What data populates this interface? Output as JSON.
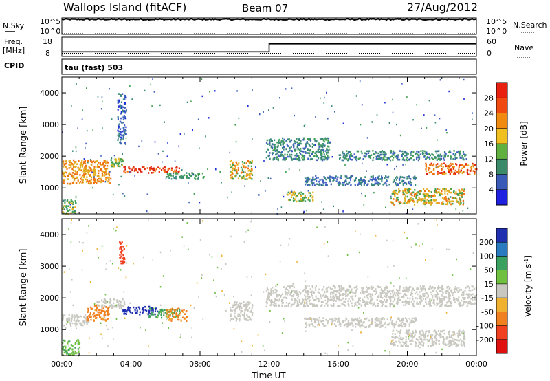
{
  "header": {
    "station": "Wallops Island (fitACF)",
    "beam": "Beam 07",
    "date": "27/Aug/2012"
  },
  "top_panels": {
    "nsky_label": "N.Sky",
    "nsearch_label": "N.Search",
    "freq_label_1": "Freq.",
    "freq_label_2": "[MHz]",
    "nave_label": "Nave",
    "cpid_label": "CPID",
    "cpid_value": "tau (fast) 503",
    "noise_ticks_left": [
      "10^5",
      "10^0"
    ],
    "noise_ticks_right": [
      "10^5",
      "10^0"
    ],
    "freq_ticks": [
      "18",
      "8"
    ],
    "nave_ticks": [
      "60",
      "0"
    ]
  },
  "chart_data": [
    {
      "type": "line",
      "panel": "noise",
      "ylabel_left": "N.Sky",
      "ylabel_right": "N.Search",
      "y_scale": "log",
      "ylim": [
        1,
        100000
      ],
      "x": [
        "00:00",
        "24:00"
      ],
      "series": [
        {
          "name": "N.Sky",
          "style": "solid",
          "level": 35000
        },
        {
          "name": "N.Search",
          "style": "dotted",
          "level": 1
        }
      ]
    },
    {
      "type": "line",
      "panel": "freq-nave",
      "ylabel_left": "Freq. [MHz]",
      "ylabel_right": "Nave",
      "ylim_left": [
        8,
        18
      ],
      "ylim_right": [
        0,
        60
      ],
      "series": [
        {
          "name": "Freq.",
          "style": "solid",
          "points": [
            [
              0,
              10.4
            ],
            [
              12,
              10.4
            ],
            [
              12,
              14.5
            ],
            [
              24,
              14.5
            ]
          ]
        },
        {
          "name": "Nave",
          "style": "dotted",
          "points": [
            [
              0,
              9.6
            ],
            [
              24,
              9.6
            ]
          ]
        }
      ]
    },
    {
      "type": "heatmap",
      "panel": "power",
      "ylabel": "Slant Range [km]",
      "xlim": [
        0,
        24
      ],
      "ylim": [
        180,
        4500
      ],
      "yticks": [
        "1000",
        "2000",
        "3000",
        "4000"
      ],
      "colorbar": {
        "label": "Power [dB]",
        "ticks": [
          "28",
          "24",
          "20",
          "16",
          "12",
          "8",
          "4"
        ],
        "range": [
          0,
          30
        ]
      },
      "features": [
        {
          "t0": 0.0,
          "t1": 2.8,
          "r0": 1150,
          "r1": 1900,
          "v": 22
        },
        {
          "t0": 0.0,
          "t1": 0.8,
          "r0": 200,
          "r1": 650,
          "v": 17
        },
        {
          "t0": 2.8,
          "t1": 3.5,
          "r0": 1700,
          "r1": 1950,
          "v": 18
        },
        {
          "t0": 3.2,
          "t1": 3.7,
          "r0": 2400,
          "r1": 4000,
          "v": 8
        },
        {
          "t0": 3.5,
          "t1": 6.8,
          "r0": 1500,
          "r1": 1700,
          "v": 26
        },
        {
          "t0": 6.0,
          "t1": 8.2,
          "r0": 1300,
          "r1": 1500,
          "v": 14
        },
        {
          "t0": 9.7,
          "t1": 11.0,
          "r0": 1300,
          "r1": 1900,
          "v": 20
        },
        {
          "t0": 11.8,
          "t1": 15.5,
          "r0": 1900,
          "r1": 2600,
          "v": 12
        },
        {
          "t0": 13.0,
          "t1": 14.5,
          "r0": 600,
          "r1": 900,
          "v": 18
        },
        {
          "t0": 14.0,
          "t1": 20.5,
          "r0": 1100,
          "r1": 1400,
          "v": 10
        },
        {
          "t0": 16.0,
          "t1": 23.5,
          "r0": 1900,
          "r1": 2200,
          "v": 12
        },
        {
          "t0": 19.0,
          "t1": 23.3,
          "r0": 500,
          "r1": 1000,
          "v": 20
        },
        {
          "t0": 21.0,
          "t1": 24.0,
          "r0": 1450,
          "r1": 1800,
          "v": 24
        }
      ]
    },
    {
      "type": "heatmap",
      "panel": "velocity",
      "ylabel": "Slant Range [km]",
      "xlabel": "Time UT",
      "xlim": [
        0,
        24
      ],
      "ylim": [
        180,
        4500
      ],
      "xticks": [
        "00:00",
        "04:00",
        "08:00",
        "12:00",
        "16:00",
        "20:00",
        "00:00"
      ],
      "yticks": [
        "1000",
        "2000",
        "3000",
        "4000"
      ],
      "colorbar": {
        "label": "Velocity [m s^-1]",
        "ticks": [
          "200",
          "100",
          "50",
          "15",
          "-15",
          "-50",
          "-100",
          "-200"
        ]
      },
      "features": [
        {
          "t0": 0.0,
          "t1": 1.6,
          "r0": 1150,
          "r1": 1500,
          "v": 0
        },
        {
          "t0": 1.4,
          "t1": 2.7,
          "r0": 1300,
          "r1": 1800,
          "v": -60
        },
        {
          "t0": 2.0,
          "t1": 3.6,
          "r0": 1700,
          "r1": 2000,
          "v": 0
        },
        {
          "t0": 3.3,
          "t1": 3.6,
          "r0": 3100,
          "r1": 3800,
          "v": -150
        },
        {
          "t0": 3.5,
          "t1": 5.5,
          "r0": 1500,
          "r1": 1750,
          "v": 180
        },
        {
          "t0": 5.0,
          "t1": 6.8,
          "r0": 1400,
          "r1": 1700,
          "v": 40
        },
        {
          "t0": 6.0,
          "t1": 7.2,
          "r0": 1300,
          "r1": 1700,
          "v": -60
        },
        {
          "t0": 9.7,
          "t1": 11.0,
          "r0": 1300,
          "r1": 1900,
          "v": 0
        },
        {
          "t0": 11.8,
          "t1": 24.0,
          "r0": 1750,
          "r1": 2400,
          "v": 0
        },
        {
          "t0": 14.0,
          "t1": 20.5,
          "r0": 1100,
          "r1": 1400,
          "v": 0
        },
        {
          "t0": 19.0,
          "t1": 23.3,
          "r0": 500,
          "r1": 1000,
          "v": 0
        },
        {
          "t0": 0.0,
          "t1": 1.0,
          "r0": 200,
          "r1": 700,
          "v": 30
        }
      ]
    }
  ]
}
